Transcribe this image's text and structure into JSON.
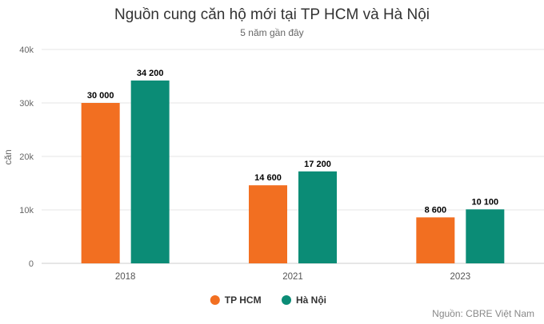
{
  "chart_data": {
    "type": "bar",
    "title": "Nguồn cung căn hộ mới tại TP HCM và Hà Nội",
    "subtitle": "5 năm gần đây",
    "ylabel": "căn",
    "xlabel": "",
    "categories": [
      "2018",
      "2021",
      "2023"
    ],
    "series": [
      {
        "name": "TP HCM",
        "color": "#f26f21",
        "values": [
          30000,
          14600,
          8600
        ],
        "data_labels": [
          "30 000",
          "14 600",
          "8 600"
        ]
      },
      {
        "name": "Hà Nội",
        "color": "#0b8c76",
        "values": [
          34200,
          17200,
          10100
        ],
        "data_labels": [
          "34 200",
          "17 200",
          "10 100"
        ]
      }
    ],
    "ylim": [
      0,
      40000
    ],
    "yticks": [
      0,
      10000,
      20000,
      30000,
      40000
    ],
    "ytick_labels": [
      "0",
      "10k",
      "20k",
      "30k",
      "40k"
    ],
    "grid": true,
    "legend_position": "bottom-center"
  },
  "source_note": "Nguồn: CBRE Việt Nam"
}
